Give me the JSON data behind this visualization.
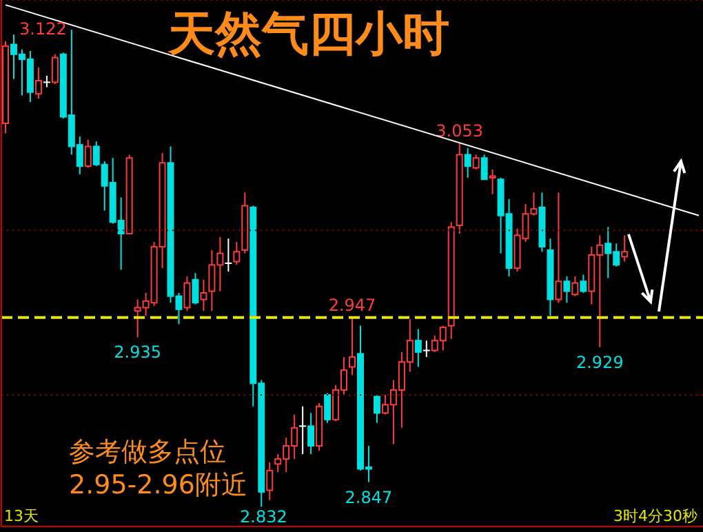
{
  "chart_data": {
    "type": "candlestick",
    "title": "天然气四小时",
    "categories": [
      null,
      null,
      null,
      null,
      null,
      null,
      null,
      null,
      null,
      null,
      null,
      null,
      null,
      null,
      null,
      null,
      null,
      null,
      null,
      null,
      null,
      null,
      null,
      null,
      null,
      null,
      null,
      null,
      null,
      null,
      null,
      null,
      null,
      null,
      null,
      null,
      null,
      null,
      null,
      null,
      null,
      null,
      null,
      null,
      null,
      null,
      null,
      null,
      null,
      null,
      null,
      null,
      null,
      null,
      null,
      null,
      null,
      null,
      null,
      null,
      null,
      null,
      null,
      null,
      null,
      null,
      null,
      null,
      null,
      null,
      null,
      null,
      null,
      null,
      null,
      null,
      null,
      null,
      null,
      null,
      null,
      null,
      null,
      null,
      null
    ],
    "ohlc": [
      [
        3.065,
        3.115,
        3.059,
        3.112
      ],
      [
        3.113,
        3.119,
        3.092,
        3.107
      ],
      [
        3.107,
        3.11,
        3.082,
        3.104
      ],
      [
        3.104,
        3.109,
        3.078,
        3.084
      ],
      [
        3.083,
        3.099,
        3.08,
        3.091
      ],
      [
        3.09,
        3.094,
        3.087,
        3.09
      ],
      [
        3.09,
        3.107,
        3.089,
        3.105
      ],
      [
        3.107,
        3.108,
        3.068,
        3.069
      ],
      [
        3.07,
        3.122,
        3.046,
        3.051
      ],
      [
        3.052,
        3.057,
        3.034,
        3.039
      ],
      [
        3.039,
        3.055,
        3.038,
        3.051
      ],
      [
        3.051,
        3.054,
        3.039,
        3.04
      ],
      [
        3.04,
        3.042,
        3.012,
        3.027
      ],
      [
        3.029,
        3.044,
        3.004,
        3.005
      ],
      [
        3.006,
        3.02,
        2.976,
        2.998
      ],
      [
        2.998,
        3.046,
        2.998,
        3.044
      ],
      [
        2.951,
        2.958,
        2.935,
        2.953
      ],
      [
        2.953,
        2.962,
        2.948,
        2.957
      ],
      [
        2.956,
        2.993,
        2.954,
        2.99
      ],
      [
        2.99,
        3.047,
        2.977,
        3.041
      ],
      [
        3.041,
        3.051,
        2.956,
        2.96
      ],
      [
        2.96,
        2.962,
        2.943,
        2.952
      ],
      [
        2.953,
        2.972,
        2.951,
        2.968
      ],
      [
        2.97,
        2.974,
        2.955,
        2.956
      ],
      [
        2.958,
        2.97,
        2.951,
        2.962
      ],
      [
        2.963,
        2.988,
        2.951,
        2.979
      ],
      [
        2.979,
        2.996,
        2.963,
        2.986
      ],
      [
        2.98,
        2.995,
        2.975,
        2.98
      ],
      [
        2.981,
        2.993,
        2.979,
        2.987
      ],
      [
        2.988,
        3.023,
        2.986,
        3.015
      ],
      [
        3.014,
        3.015,
        2.893,
        2.907
      ],
      [
        2.907,
        2.909,
        2.832,
        2.841
      ],
      [
        2.842,
        2.859,
        2.836,
        2.854
      ],
      [
        2.858,
        2.864,
        2.853,
        2.861
      ],
      [
        2.861,
        2.874,
        2.853,
        2.869
      ],
      [
        2.869,
        2.888,
        2.861,
        2.88
      ],
      [
        2.881,
        2.893,
        2.864,
        2.881
      ],
      [
        2.881,
        2.889,
        2.864,
        2.869
      ],
      [
        2.869,
        2.895,
        2.866,
        2.893
      ],
      [
        2.9,
        2.901,
        2.883,
        2.885
      ],
      [
        2.885,
        2.906,
        2.884,
        2.903
      ],
      [
        2.903,
        2.923,
        2.9,
        2.915
      ],
      [
        2.917,
        2.947,
        2.912,
        2.923
      ],
      [
        2.925,
        2.942,
        2.854,
        2.855
      ],
      [
        2.856,
        2.869,
        2.847,
        2.855
      ],
      [
        2.899,
        2.9,
        2.883,
        2.889
      ],
      [
        2.889,
        2.9,
        2.888,
        2.894
      ],
      [
        2.894,
        2.909,
        2.87,
        2.903
      ],
      [
        2.903,
        2.926,
        2.88,
        2.92
      ],
      [
        2.92,
        2.946,
        2.914,
        2.933
      ],
      [
        2.933,
        2.94,
        2.917,
        2.926
      ],
      [
        2.927,
        2.933,
        2.923,
        2.927
      ],
      [
        2.927,
        2.936,
        2.926,
        2.933
      ],
      [
        2.933,
        2.942,
        2.927,
        2.941
      ],
      [
        2.942,
        3.005,
        2.934,
        3.002
      ],
      [
        3.003,
        3.053,
        2.998,
        3.046
      ],
      [
        3.046,
        3.05,
        3.032,
        3.039
      ],
      [
        3.038,
        3.046,
        3.037,
        3.044
      ],
      [
        3.044,
        3.046,
        3.031,
        3.031
      ],
      [
        3.032,
        3.037,
        3.022,
        3.033
      ],
      [
        3.031,
        3.032,
        2.986,
        3.009
      ],
      [
        3.01,
        3.019,
        2.972,
        2.977
      ],
      [
        2.977,
        3.001,
        2.975,
        2.997
      ],
      [
        2.995,
        3.016,
        2.993,
        3.01
      ],
      [
        3.01,
        3.023,
        3.009,
        3.013
      ],
      [
        3.014,
        3.023,
        2.987,
        2.99
      ],
      [
        2.988,
        2.995,
        2.948,
        2.958
      ],
      [
        2.958,
        3.023,
        2.956,
        2.969
      ],
      [
        2.969,
        2.972,
        2.956,
        2.963
      ],
      [
        2.961,
        2.972,
        2.96,
        2.968
      ],
      [
        2.969,
        2.973,
        2.962,
        2.963
      ],
      [
        2.963,
        2.99,
        2.955,
        2.985
      ],
      [
        2.985,
        2.997,
        2.929,
        2.991
      ],
      [
        2.992,
        3.002,
        2.971,
        2.986
      ],
      [
        2.987,
        2.992,
        2.978,
        2.979
      ],
      [
        2.984,
        2.997,
        2.981,
        2.987
      ],
      null,
      null,
      null,
      null,
      null,
      null,
      null,
      null,
      null
    ],
    "colors": [
      "#ff3c3c",
      "#00e0e0",
      "#00e0e0",
      "#00e0e0",
      "#ff3c3c",
      "#ffffff",
      "#ff3c3c",
      "#00e0e0",
      "#00e0e0",
      "#00e0e0",
      "#ff3c3c",
      "#00e0e0",
      "#00e0e0",
      "#00e0e0",
      "#00e0e0",
      "#ff3c3c",
      "#ff3c3c",
      "#ff3c3c",
      "#ff3c3c",
      "#ff3c3c",
      "#00e0e0",
      "#00e0e0",
      "#ff3c3c",
      "#00e0e0",
      "#ff3c3c",
      "#ff3c3c",
      "#ff3c3c",
      "#ffffff",
      "#ff3c3c",
      "#ff3c3c",
      "#00e0e0",
      "#00e0e0",
      "#ff3c3c",
      "#ff3c3c",
      "#ff3c3c",
      "#ff3c3c",
      "#ffffff",
      "#00e0e0",
      "#ff3c3c",
      "#00e0e0",
      "#ff3c3c",
      "#ff3c3c",
      "#ff3c3c",
      "#00e0e0",
      "#00e0e0",
      "#00e0e0",
      "#ff3c3c",
      "#ff3c3c",
      "#ff3c3c",
      "#ff3c3c",
      "#00e0e0",
      "#ffffff",
      "#ff3c3c",
      "#ff3c3c",
      "#ff3c3c",
      "#ff3c3c",
      "#00e0e0",
      "#ff3c3c",
      "#00e0e0",
      "#ff3c3c",
      "#00e0e0",
      "#00e0e0",
      "#ff3c3c",
      "#ff3c3c",
      "#ff3c3c",
      "#00e0e0",
      "#00e0e0",
      "#ff3c3c",
      "#00e0e0",
      "#ff3c3c",
      "#00e0e0",
      "#ff3c3c",
      "#ff3c3c",
      "#00e0e0",
      "#00e0e0",
      "#ff3c3c",
      null,
      null,
      null,
      null,
      null,
      null,
      null,
      null,
      null
    ],
    "series": [
      {
        "type": "line",
        "color": "#ffffff",
        "values": [
          3.137,
          null,
          null,
          null,
          null,
          null,
          null,
          null,
          null,
          null,
          null,
          null,
          null,
          null,
          null,
          null,
          null,
          null,
          null,
          null,
          null,
          null,
          null,
          null,
          null,
          null,
          null,
          null,
          null,
          null,
          null,
          null,
          null,
          null,
          null,
          null,
          null,
          null,
          null,
          null,
          null,
          null,
          null,
          null,
          null,
          null,
          null,
          null,
          null,
          null,
          null,
          null,
          null,
          null,
          null,
          null,
          null,
          null,
          null,
          null,
          null,
          null,
          null,
          null,
          null,
          null,
          null,
          null,
          null,
          null,
          null,
          null,
          null,
          null,
          null,
          null,
          null,
          null,
          null,
          null,
          null,
          null,
          null,
          null,
          3.009
        ]
      }
    ],
    "ylim": [
      2.82,
      3.14
    ],
    "yticks": [
      {
        "value": 2.9,
        "label": null
      },
      {
        "value": 3.0,
        "label": null
      }
    ],
    "grid": "y",
    "tick_labels": false,
    "ref_lines": [
      {
        "axis": "y",
        "value": 2.947,
        "color": "#e6e600",
        "line_style": "dashed"
      }
    ],
    "annotations": [
      "参考做多点位",
      "2.95-2.96附近",
      "13天",
      "3时4分30秒",
      "3.122",
      "2.832",
      {
        "text": "2.935",
        "y": 2.935
      },
      {
        "text": "2.947",
        "y": 2.947
      },
      {
        "text": "3.053",
        "y": 3.053
      },
      {
        "text": "2.847",
        "y": 2.847
      },
      {
        "text": "2.929",
        "y": 2.929
      }
    ]
  }
}
